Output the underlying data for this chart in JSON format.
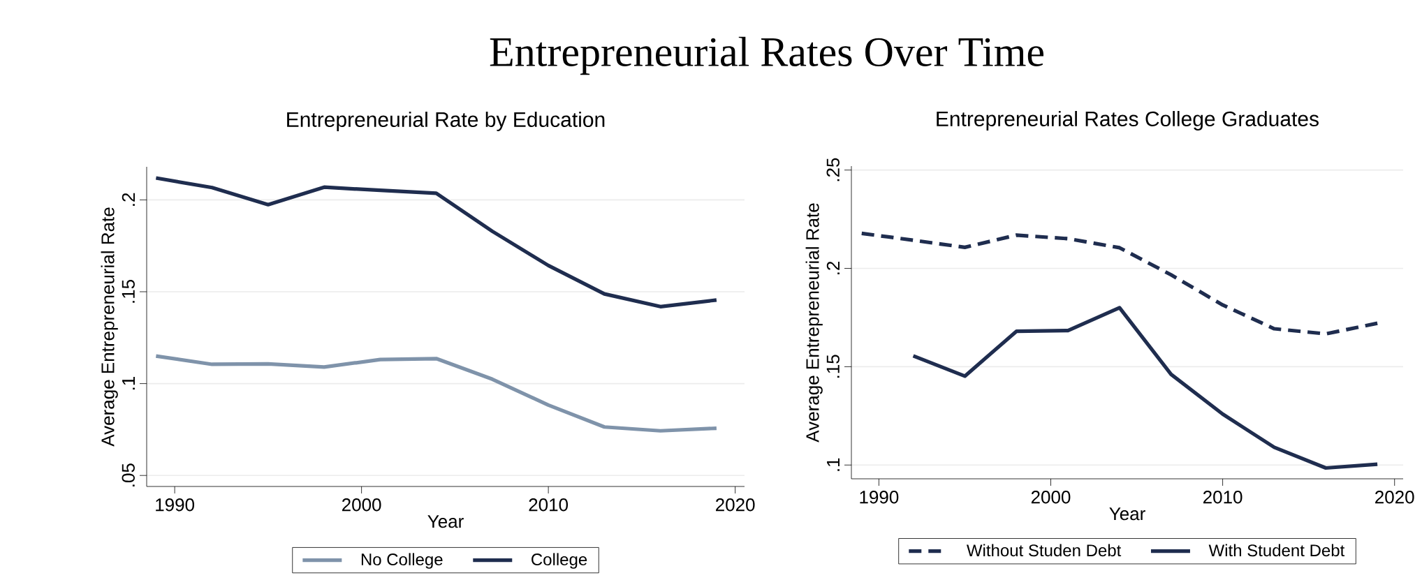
{
  "chart_data": [
    {
      "type": "line",
      "title": "Entrepreneurial Rate by Education",
      "xlabel": "Year",
      "ylabel": "Average Entrepreneurial Rate",
      "annotations": [
        "Entrepreneurial Rates Over Time"
      ],
      "x": [
        1989,
        1992,
        1995,
        1998,
        2001,
        2004,
        2007,
        2010,
        2013,
        2016,
        2019
      ],
      "series": [
        {
          "name": "No College",
          "color": "#7f93aa",
          "line_style": "solid",
          "values": [
            0.115,
            0.1105,
            0.1107,
            0.109,
            0.1131,
            0.1136,
            0.1024,
            0.0883,
            0.0764,
            0.0743,
            0.0757
          ]
        },
        {
          "name": "College",
          "color": "#1f2d4f",
          "line_style": "solid",
          "values": [
            0.2119,
            0.2067,
            0.1974,
            0.2069,
            0.2052,
            0.2036,
            0.1829,
            0.1643,
            0.1488,
            0.1419,
            0.1455
          ]
        }
      ],
      "xlim": [
        1988.5,
        2020.5
      ],
      "ylim": [
        0.044,
        0.218
      ],
      "xticks": [
        1990,
        2000,
        2010,
        2020
      ],
      "yticks": [
        {
          "value": 0.05,
          "label": ".05"
        },
        {
          "value": 0.1,
          "label": ".1"
        },
        {
          "value": 0.15,
          "label": ".15"
        },
        {
          "value": 0.2,
          "label": ".2"
        }
      ],
      "grid": "y",
      "legend": "bottom",
      "marker": "none"
    },
    {
      "type": "line",
      "title": "Entrepreneurial Rates College Graduates",
      "xlabel": "Year",
      "ylabel": "Average Entrepreneurial Rate",
      "x": [
        1989,
        1992,
        1995,
        1998,
        2001,
        2004,
        2007,
        2010,
        2013,
        2016,
        2019
      ],
      "series": [
        {
          "name": "Without Studen Debt",
          "color": "#1f2d4f",
          "line_style": "dashed",
          "values": [
            0.2178,
            0.2143,
            0.2107,
            0.2169,
            0.2151,
            0.2105,
            0.1967,
            0.1814,
            0.1693,
            0.1667,
            0.1721
          ]
        },
        {
          "name": "With Student Debt",
          "color": "#1f2d4f",
          "line_style": "solid",
          "values": [
            null,
            0.1555,
            0.1452,
            0.168,
            0.1684,
            0.18,
            0.1461,
            0.1259,
            0.109,
            0.0985,
            0.1004
          ]
        }
      ],
      "xlim": [
        1988.4,
        2020.5
      ],
      "ylim": [
        0.093,
        0.252
      ],
      "xticks": [
        1990,
        2000,
        2010,
        2020
      ],
      "yticks": [
        {
          "value": 0.1,
          "label": ".1"
        },
        {
          "value": 0.15,
          "label": ".15"
        },
        {
          "value": 0.2,
          "label": ".2"
        },
        {
          "value": 0.25,
          "label": ".25"
        }
      ],
      "grid": "y",
      "legend": "bottom",
      "marker": "none"
    }
  ]
}
